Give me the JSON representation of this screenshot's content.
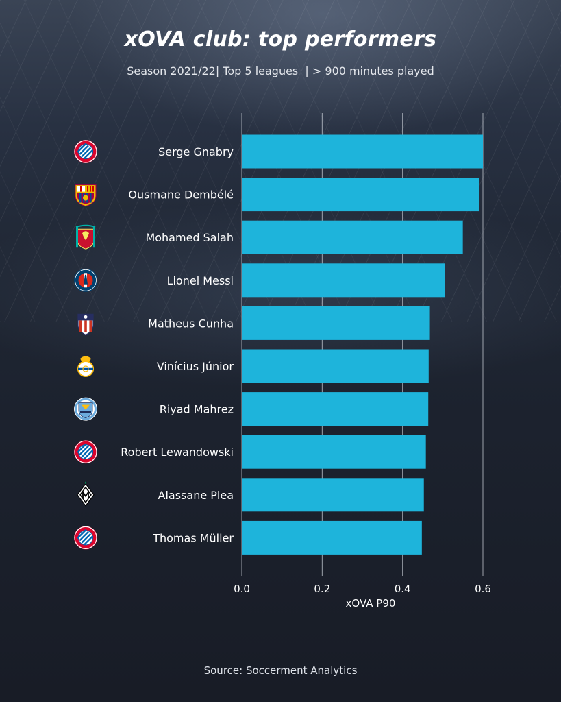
{
  "header": {
    "title": "xOVA club: top performers",
    "subtitle": "Season 2021/22| Top 5 leagues  | > 900 minutes played"
  },
  "footer": {
    "source": "Source: Soccerment Analytics"
  },
  "colors": {
    "bar": "#1eb4db",
    "gridline": "#c9ced6"
  },
  "chart_data": {
    "type": "bar",
    "orientation": "horizontal",
    "categories": [
      "Serge Gnabry",
      "Ousmane Dembélé",
      "Mohamed Salah",
      "Lionel Messi",
      "Matheus Cunha",
      "Vinícius Júnior",
      "Riyad Mahrez",
      "Robert Lewandowski",
      "Alassane Plea",
      "Thomas Müller"
    ],
    "clubs": [
      "bayern-munich-badge",
      "barcelona-badge",
      "liverpool-badge",
      "psg-badge",
      "atletico-madrid-badge",
      "real-madrid-badge",
      "manchester-city-badge",
      "bayern-munich-badge",
      "gladbach-badge",
      "bayern-munich-badge"
    ],
    "values": [
      0.6,
      0.59,
      0.55,
      0.505,
      0.468,
      0.465,
      0.464,
      0.458,
      0.453,
      0.448
    ],
    "xlabel": "xOVA P90",
    "ylabel": "",
    "xlim": [
      0,
      0.6
    ],
    "xticks": [
      "0.0",
      "0.2",
      "0.4",
      "0.6"
    ],
    "grid": "vertical"
  }
}
